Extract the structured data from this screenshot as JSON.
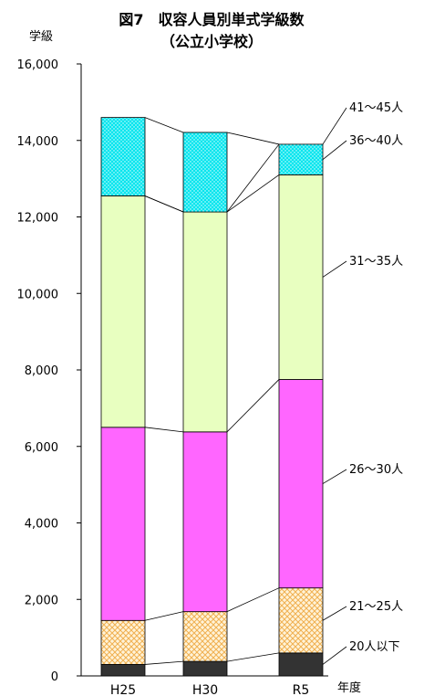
{
  "chart_data": {
    "type": "bar",
    "stacked": true,
    "title": "図7　収容人員別単式学級数",
    "subtitle": "（公立小学校）",
    "ylabel": "学級",
    "xlabel": "年度",
    "ylim": [
      0,
      16000
    ],
    "yticks": [
      "0",
      "2,000",
      "4,000",
      "6,000",
      "8,000",
      "10,000",
      "12,000",
      "14,000",
      "16,000"
    ],
    "ytick_values": [
      0,
      2000,
      4000,
      6000,
      8000,
      10000,
      12000,
      14000,
      16000
    ],
    "categories": [
      "H25",
      "H30",
      "R5"
    ],
    "grid": false,
    "legend_position": "right",
    "series": [
      {
        "name": "20人以下",
        "values": [
          300,
          380,
          600
        ],
        "color": "#333333",
        "pattern": "solid"
      },
      {
        "name": "21～25人",
        "values": [
          1150,
          1300,
          1700
        ],
        "color": "#f5c878",
        "pattern": "dots"
      },
      {
        "name": "26～30人",
        "values": [
          5050,
          4700,
          5450
        ],
        "color": "#ff66ff",
        "pattern": "solid"
      },
      {
        "name": "31～35人",
        "values": [
          6050,
          5750,
          5350
        ],
        "color": "#e8ffc0",
        "pattern": "solid"
      },
      {
        "name": "36～40人",
        "values": [
          0,
          0,
          800
        ],
        "color": "#00e5ee",
        "pattern": "dots"
      },
      {
        "name": "41～45人",
        "values": [
          2050,
          2080,
          0
        ],
        "color": "#00e5ee",
        "pattern": "dots"
      }
    ]
  }
}
